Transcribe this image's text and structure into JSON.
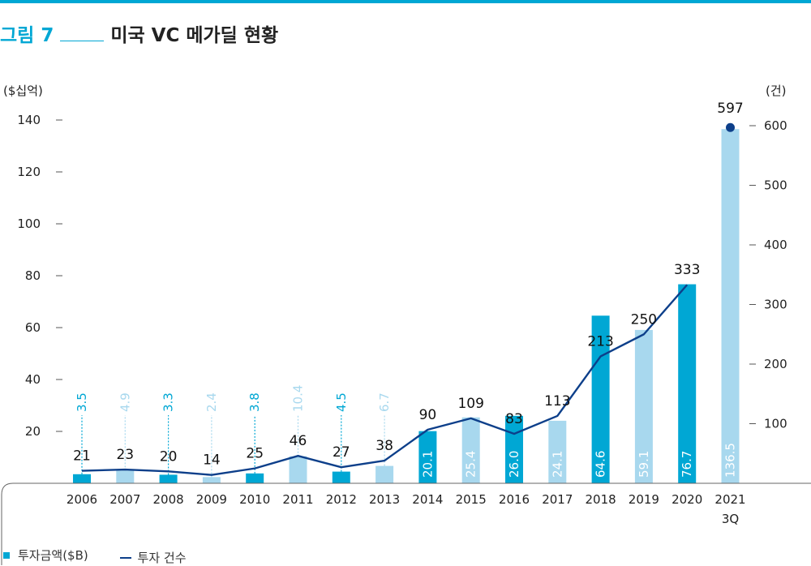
{
  "title": {
    "figure_label": "그림 7",
    "text": "미국 VC 메가딜 현황"
  },
  "chart_data": {
    "type": "bar",
    "categories": [
      "2006",
      "2007",
      "2008",
      "2009",
      "2010",
      "2011",
      "2012",
      "2013",
      "2014",
      "2015",
      "2016",
      "2017",
      "2018",
      "2019",
      "2020",
      "2021\n3Q"
    ],
    "left_axis_label": "($십억)",
    "right_axis_label": "(건)",
    "left_ylim": [
      0,
      140
    ],
    "left_ticks": [
      20,
      40,
      60,
      80,
      100,
      120,
      140
    ],
    "right_ylim": [
      0,
      600
    ],
    "right_ticks": [
      100,
      200,
      300,
      400,
      500,
      600
    ],
    "series": [
      {
        "name": "투자금액($B)",
        "type": "bar",
        "axis": "left",
        "values": [
          3.5,
          4.9,
          3.3,
          2.4,
          3.8,
          10.4,
          4.5,
          6.7,
          20.1,
          25.4,
          26.0,
          24.1,
          64.6,
          59.1,
          76.7,
          136.5
        ],
        "labels": [
          "3.5",
          "4.9",
          "3.3",
          "2.4",
          "3.8",
          "10.4",
          "4.5",
          "6.7",
          "20.1",
          "25.4",
          "26.0",
          "24.1",
          "64.6",
          "59.1",
          "76.7",
          "136.5"
        ]
      },
      {
        "name": "투자 건수",
        "type": "line",
        "axis": "right",
        "values": [
          21,
          23,
          20,
          14,
          25,
          46,
          27,
          38,
          90,
          109,
          83,
          113,
          213,
          250,
          333,
          597
        ]
      }
    ],
    "colors": {
      "bar_dark": "#00a7d4",
      "bar_light": "#a8d8ee",
      "line": "#0d3f8a"
    },
    "legend_position": "bottom-left"
  },
  "legend": {
    "bar": "투자금액($B)",
    "line": "투자 건수"
  }
}
